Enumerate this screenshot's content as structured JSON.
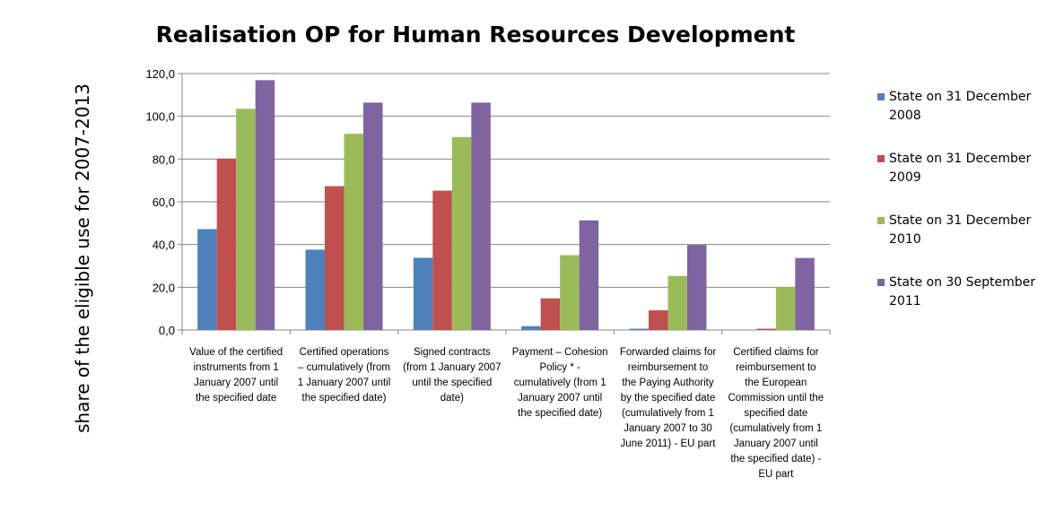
{
  "chart_data": {
    "type": "bar",
    "title": "Realisation OP for Human Resources Development",
    "ylabel": "share of the eligible use for 2007-2013",
    "xlabel": "",
    "ylim": [
      0,
      120
    ],
    "yticks": [
      "0,0",
      "20,0",
      "40,0",
      "60,0",
      "80,0",
      "100,0",
      "120,0"
    ],
    "grid": true,
    "legend_position": "right",
    "categories": [
      [
        "Value of the certified",
        "instruments from 1",
        "January 2007 until",
        "the specified date"
      ],
      [
        "Certified operations",
        "– cumulatively (from",
        "1 January 2007 until",
        "the specified date)"
      ],
      [
        "Signed contracts",
        "(from 1 January 2007",
        "until the specified",
        "date)"
      ],
      [
        "Payment – Cohesion",
        "Policy * -",
        "cumulatively (from 1",
        "January 2007 until",
        "the specified date)"
      ],
      [
        "Forwarded claims for",
        "reimbursement to",
        "the Paying Authority",
        "by the specified date",
        "(cumulatively from 1",
        "January 2007 to 30",
        "June 2011) - EU part"
      ],
      [
        "Certified claims for",
        "reimbursement to",
        "the European",
        "Commission until the",
        "specified date",
        "(cumulatively from 1",
        "January 2007 until",
        "the specified date) -",
        "EU part"
      ]
    ],
    "series": [
      {
        "name": [
          "State on 31 December",
          "2008"
        ],
        "color": "#4f81bd",
        "values": [
          47.2,
          37.6,
          33.8,
          1.8,
          0.6,
          0.0
        ]
      },
      {
        "name": [
          "State on 31 December",
          "2009"
        ],
        "color": "#c0504d",
        "values": [
          80.2,
          67.3,
          65.2,
          14.8,
          9.2,
          0.6
        ]
      },
      {
        "name": [
          "State on 31 December",
          "2010"
        ],
        "color": "#9bbb59",
        "values": [
          103.5,
          91.8,
          90.3,
          35.0,
          25.3,
          20.1
        ]
      },
      {
        "name": [
          "State on 30 September",
          "2011"
        ],
        "color": "#8064a2",
        "values": [
          116.9,
          106.4,
          106.4,
          51.3,
          39.8,
          33.7
        ]
      }
    ]
  }
}
